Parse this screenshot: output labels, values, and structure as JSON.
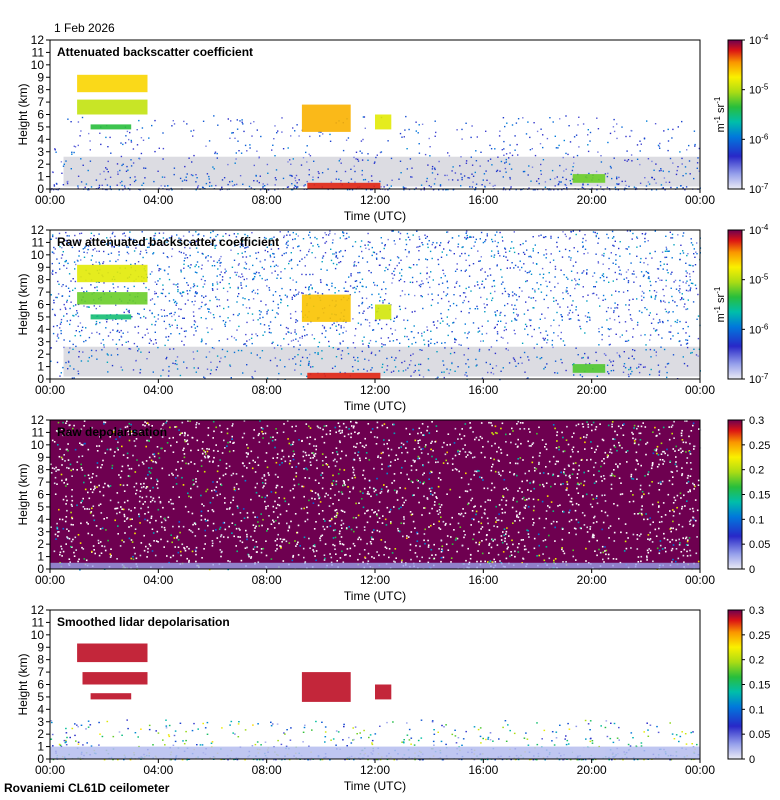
{
  "header": {
    "date": "1 Feb 2026"
  },
  "footer": {
    "instrument": "Rovaniemi CL61D ceilometer"
  },
  "chart_data": [
    {
      "type": "heatmap",
      "title": "Attenuated backscatter coefficient",
      "xlabel": "Time (UTC)",
      "ylabel": "Height (km)",
      "xticks": [
        "00:00",
        "04:00",
        "08:00",
        "12:00",
        "16:00",
        "20:00",
        "00:00"
      ],
      "xlim": [
        0,
        24
      ],
      "ylim": [
        0,
        12
      ],
      "yticks": [
        0,
        1,
        2,
        3,
        4,
        5,
        6,
        7,
        8,
        9,
        10,
        11,
        12
      ],
      "colorbar": {
        "scale": "log",
        "range": [
          1e-07,
          0.0001
        ],
        "tick_labels": [
          "10^-4",
          "10^-5",
          "10^-6",
          "10^-7"
        ],
        "unit": "m^-1 sr^-1"
      },
      "features": [
        {
          "t_start": 1.0,
          "t_end": 3.6,
          "h_start": 7.8,
          "h_end": 9.2,
          "level": 0.78
        },
        {
          "t_start": 1.0,
          "t_end": 3.6,
          "h_start": 6.0,
          "h_end": 7.2,
          "level": 0.68
        },
        {
          "t_start": 1.5,
          "t_end": 3.0,
          "h_start": 4.8,
          "h_end": 5.2,
          "level": 0.55
        },
        {
          "t_start": 9.3,
          "t_end": 11.1,
          "h_start": 4.6,
          "h_end": 6.8,
          "level": 0.82
        },
        {
          "t_start": 12.0,
          "t_end": 12.6,
          "h_start": 4.8,
          "h_end": 6.0,
          "level": 0.72
        },
        {
          "t_start": 19.3,
          "t_end": 20.5,
          "h_start": 0.5,
          "h_end": 1.2,
          "level": 0.6
        },
        {
          "t_start": 9.5,
          "t_end": 12.2,
          "h_start": 0.0,
          "h_end": 0.5,
          "level": 0.92
        }
      ]
    },
    {
      "type": "heatmap",
      "title": "Raw attenuated backscatter coefficient",
      "xlabel": "Time (UTC)",
      "ylabel": "Height (km)",
      "xticks": [
        "00:00",
        "04:00",
        "08:00",
        "12:00",
        "16:00",
        "20:00",
        "00:00"
      ],
      "xlim": [
        0,
        24
      ],
      "ylim": [
        0,
        12
      ],
      "yticks": [
        0,
        1,
        2,
        3,
        4,
        5,
        6,
        7,
        8,
        9,
        10,
        11,
        12
      ],
      "colorbar": {
        "scale": "log",
        "range": [
          1e-07,
          0.0001
        ],
        "tick_labels": [
          "10^-4",
          "10^-5",
          "10^-6",
          "10^-7"
        ],
        "unit": "m^-1 sr^-1"
      },
      "features": [
        {
          "t_start": 1.0,
          "t_end": 3.6,
          "h_start": 7.8,
          "h_end": 9.2,
          "level": 0.72
        },
        {
          "t_start": 1.0,
          "t_end": 3.6,
          "h_start": 6.0,
          "h_end": 7.0,
          "level": 0.6
        },
        {
          "t_start": 1.5,
          "t_end": 3.0,
          "h_start": 4.8,
          "h_end": 5.2,
          "level": 0.5
        },
        {
          "t_start": 9.3,
          "t_end": 11.1,
          "h_start": 4.6,
          "h_end": 6.8,
          "level": 0.8
        },
        {
          "t_start": 12.0,
          "t_end": 12.6,
          "h_start": 4.8,
          "h_end": 6.0,
          "level": 0.7
        },
        {
          "t_start": 19.3,
          "t_end": 20.5,
          "h_start": 0.5,
          "h_end": 1.2,
          "level": 0.58
        },
        {
          "t_start": 9.5,
          "t_end": 12.2,
          "h_start": 0.0,
          "h_end": 0.5,
          "level": 0.92
        }
      ]
    },
    {
      "type": "heatmap",
      "title": "Raw depolarisation",
      "xlabel": "Time (UTC)",
      "ylabel": "Height (km)",
      "xticks": [
        "00:00",
        "04:00",
        "08:00",
        "12:00",
        "16:00",
        "20:00",
        "00:00"
      ],
      "xlim": [
        0,
        24
      ],
      "ylim": [
        0,
        12
      ],
      "yticks": [
        0,
        1,
        2,
        3,
        4,
        5,
        6,
        7,
        8,
        9,
        10,
        11,
        12
      ],
      "colorbar": {
        "scale": "linear",
        "range": [
          0,
          0.3
        ],
        "tick_labels": [
          "0.3",
          "0.25",
          "0.2",
          "0.15",
          "0.1",
          "0.05",
          "0"
        ],
        "unit": ""
      }
    },
    {
      "type": "heatmap",
      "title": "Smoothed lidar depolarisation",
      "xlabel": "Time (UTC)",
      "ylabel": "Height (km)",
      "xticks": [
        "00:00",
        "04:00",
        "08:00",
        "12:00",
        "16:00",
        "20:00",
        "00:00"
      ],
      "xlim": [
        0,
        24
      ],
      "ylim": [
        0,
        12
      ],
      "yticks": [
        0,
        1,
        2,
        3,
        4,
        5,
        6,
        7,
        8,
        9,
        10,
        11,
        12
      ],
      "colorbar": {
        "scale": "linear",
        "range": [
          0,
          0.3
        ],
        "tick_labels": [
          "0.3",
          "0.25",
          "0.2",
          "0.15",
          "0.1",
          "0.05",
          "0"
        ],
        "unit": ""
      },
      "features": [
        {
          "t_start": 1.0,
          "t_end": 3.6,
          "h_start": 7.8,
          "h_end": 9.3,
          "level": 0.95
        },
        {
          "t_start": 1.2,
          "t_end": 3.6,
          "h_start": 6.0,
          "h_end": 7.0,
          "level": 0.95
        },
        {
          "t_start": 1.5,
          "t_end": 3.0,
          "h_start": 4.8,
          "h_end": 5.3,
          "level": 0.95
        },
        {
          "t_start": 9.3,
          "t_end": 11.1,
          "h_start": 4.6,
          "h_end": 7.0,
          "level": 0.95
        },
        {
          "t_start": 12.0,
          "t_end": 12.6,
          "h_start": 4.8,
          "h_end": 6.0,
          "level": 0.95
        },
        {
          "t_start": 19.3,
          "t_end": 20.5,
          "h_start": 0.3,
          "h_end": 0.9,
          "level": 0.05
        }
      ]
    }
  ]
}
